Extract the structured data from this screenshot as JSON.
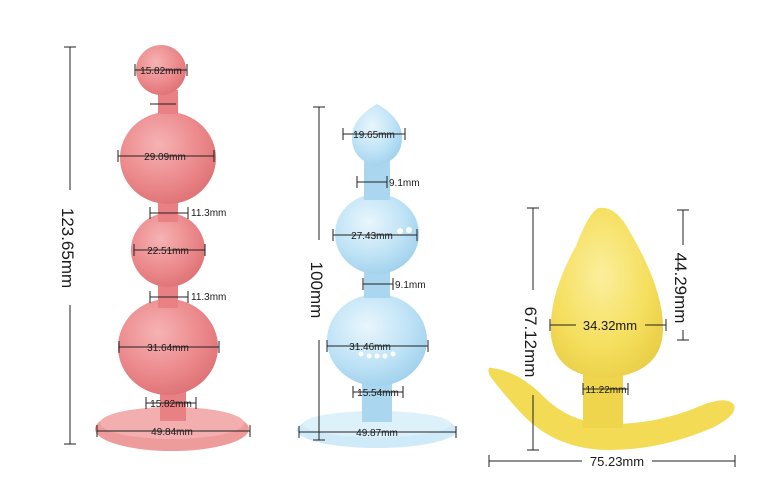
{
  "products": [
    {
      "id": "pink",
      "color": "#ef8f92",
      "height_label": "123.65mm",
      "labels": {
        "tip_width": "15.82mm",
        "bead1_width": "29.09mm",
        "neck1": "11.3mm",
        "bead2_width": "22.51mm",
        "neck2": "11.3mm",
        "bead3_width": "31.64mm",
        "stem_width": "15.82mm",
        "base_width": "49.84mm"
      }
    },
    {
      "id": "blue",
      "color": "#bfe3f6",
      "height_label": "100mm",
      "labels": {
        "tip_width": "19.65mm",
        "neck1": "9.1mm",
        "bead1_width": "27.43mm",
        "neck2": "9.1mm",
        "bead2_width": "31.46mm",
        "stem_width": "15.54mm",
        "base_width": "49.87mm"
      }
    },
    {
      "id": "yellow",
      "color": "#f7e26b",
      "height_label": "67.12mm",
      "cone_height_label": "44.29mm",
      "labels": {
        "cone_width": "34.32mm",
        "neck": "11.22mm",
        "base_width": "75.23mm"
      }
    }
  ]
}
